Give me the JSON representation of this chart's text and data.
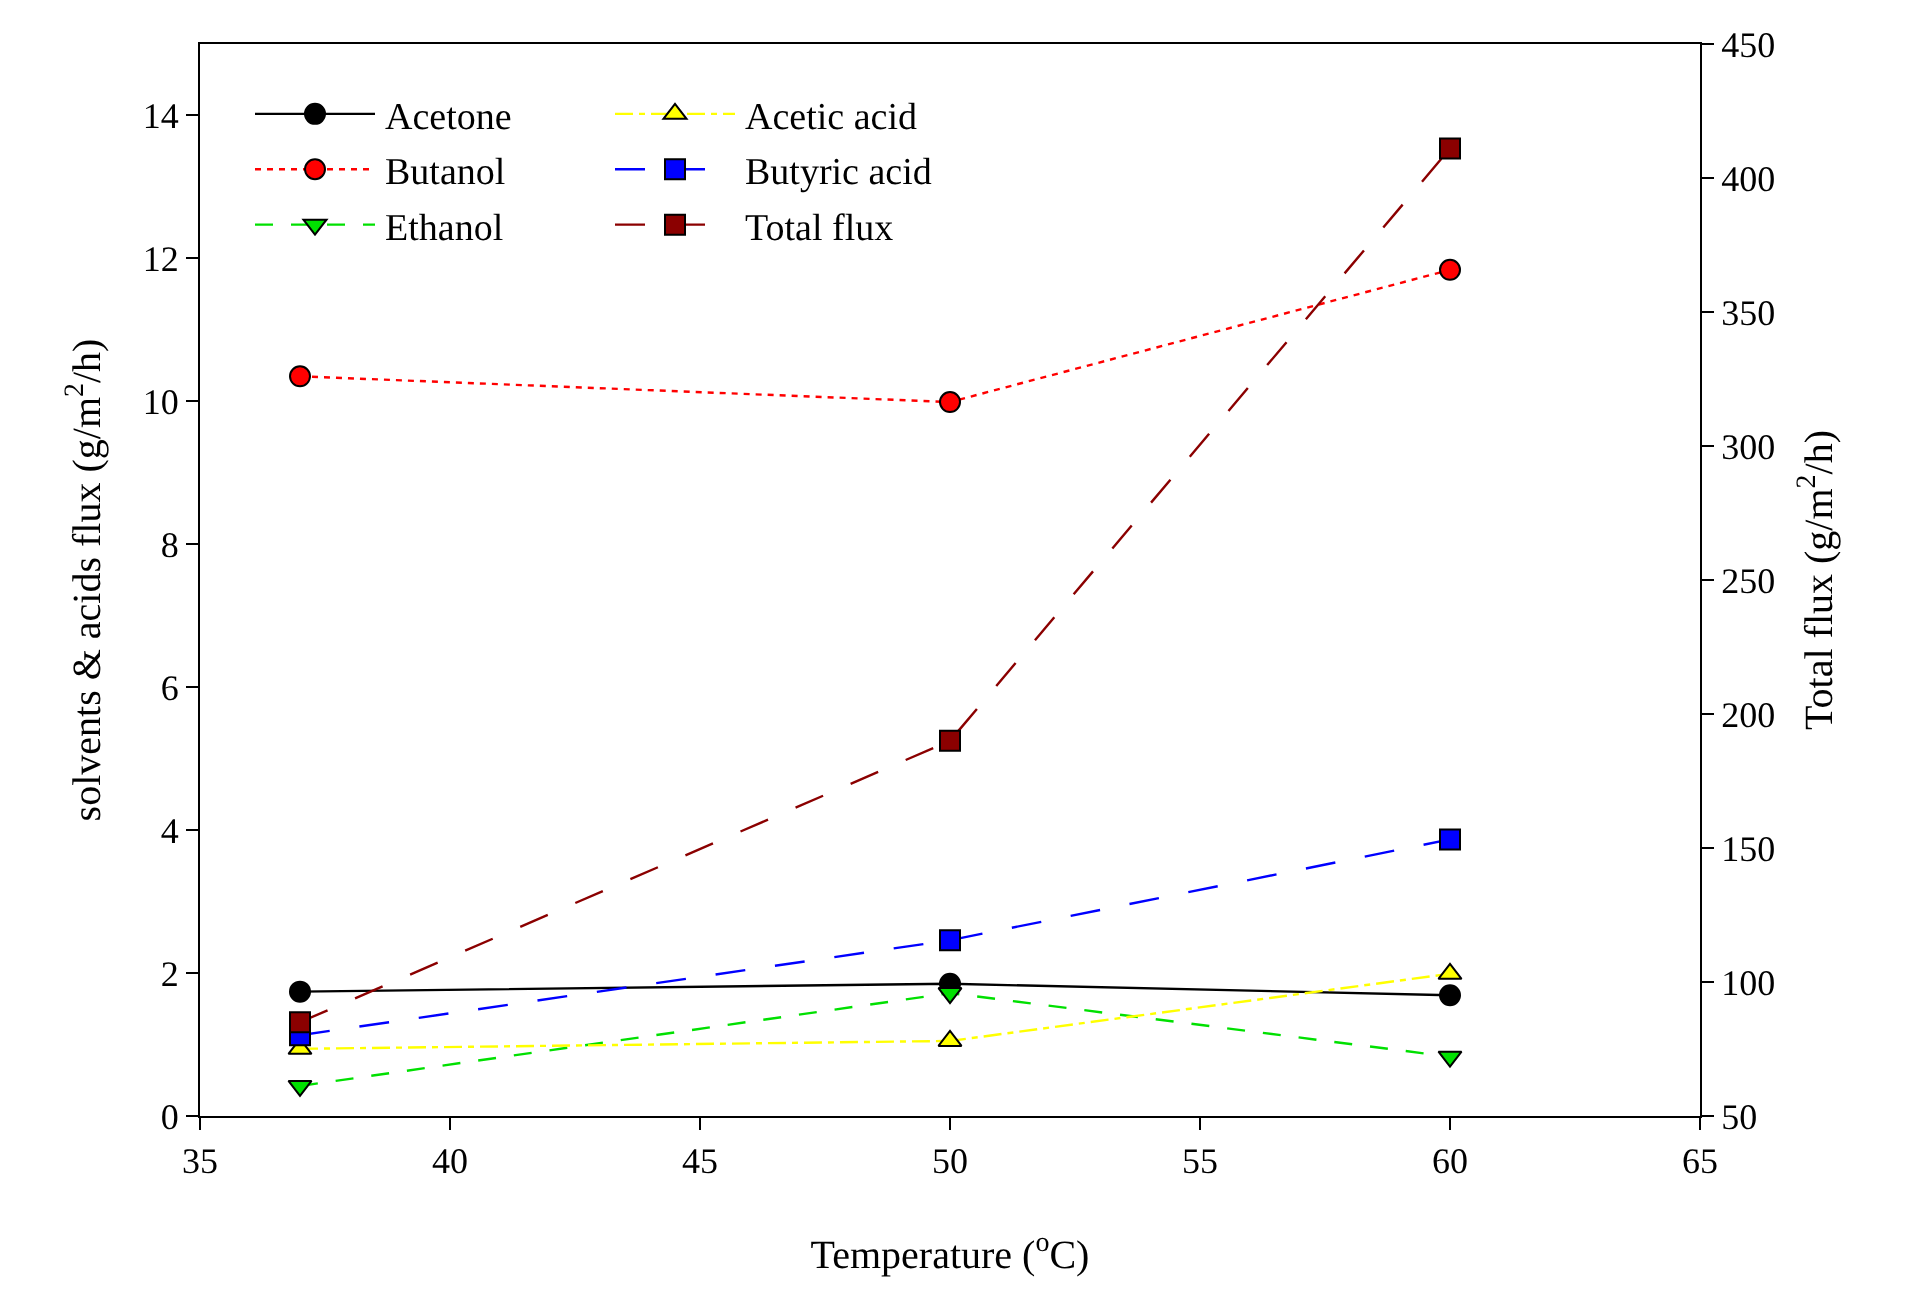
{
  "chart_data": {
    "type": "line",
    "xlabel": "Temperature ($^{o}$C)",
    "ylabel": "solvents & acids flux (g/m$^{2}$/h)",
    "y2label": "Total flux (g/m$^{2}$/h)",
    "x": [
      37,
      50,
      60
    ],
    "xlim": [
      35,
      65
    ],
    "xticks": [
      35,
      40,
      45,
      50,
      55,
      60,
      65
    ],
    "ylim": [
      0,
      15
    ],
    "yticks": [
      0,
      2,
      4,
      6,
      8,
      10,
      12,
      14
    ],
    "y2lim": [
      50,
      450
    ],
    "y2ticks": [
      50,
      100,
      150,
      200,
      250,
      300,
      350,
      400,
      450
    ],
    "legend": "top left",
    "series": [
      {
        "name": "Acetone",
        "color": "#000000",
        "values": [
          1.74,
          1.85,
          1.69
        ],
        "marker": "circle",
        "line_style": "solid"
      },
      {
        "name": "Butanol",
        "color": "#ff0000",
        "values": [
          10.35,
          9.99,
          11.84
        ],
        "marker": "circle",
        "line_style": "dotted"
      },
      {
        "name": "Ethanol",
        "color": "#00e000",
        "values": [
          0.42,
          1.72,
          0.83
        ],
        "marker": "triangle-down",
        "line_style": "dashed"
      },
      {
        "name": "Acetic acid",
        "color": "#ffff00",
        "values": [
          0.94,
          1.05,
          1.99
        ],
        "marker": "triangle",
        "line_style": "dashdot"
      },
      {
        "name": "Butyric acid",
        "color": "#0000ff",
        "values": [
          1.13,
          2.46,
          3.87
        ],
        "marker": "square",
        "line_style": "longdash"
      },
      {
        "name": "Total flux",
        "color": "#8b0000",
        "values": [
          85,
          190,
          411
        ],
        "marker": "square",
        "line_style": "longdash",
        "axis": "y2"
      }
    ]
  }
}
